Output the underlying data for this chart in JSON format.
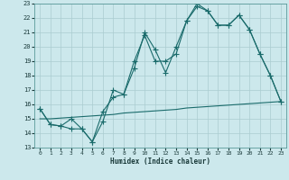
{
  "xlabel": "Humidex (Indice chaleur)",
  "background_color": "#cce8ec",
  "grid_color": "#aaccd0",
  "line_color": "#1a6b6b",
  "xlim": [
    -0.5,
    23.5
  ],
  "ylim": [
    13,
    23
  ],
  "yticks": [
    13,
    14,
    15,
    16,
    17,
    18,
    19,
    20,
    21,
    22,
    23
  ],
  "xticks": [
    0,
    1,
    2,
    3,
    4,
    5,
    6,
    7,
    8,
    9,
    10,
    11,
    12,
    13,
    14,
    15,
    16,
    17,
    18,
    19,
    20,
    21,
    22,
    23
  ],
  "line1_x": [
    0,
    1,
    2,
    3,
    4,
    5,
    6,
    7,
    8,
    9,
    10,
    11,
    12,
    13,
    14,
    15,
    16,
    17,
    18,
    19,
    20,
    21,
    22,
    23
  ],
  "line1_y": [
    15.7,
    14.6,
    14.5,
    15.0,
    14.3,
    13.4,
    15.5,
    16.5,
    16.7,
    19.0,
    20.8,
    19.0,
    19.0,
    19.5,
    21.8,
    22.8,
    22.5,
    21.5,
    21.5,
    22.2,
    21.2,
    19.5,
    18.0,
    16.2
  ],
  "line2_x": [
    0,
    1,
    2,
    3,
    4,
    5,
    6,
    7,
    8,
    9,
    10,
    11,
    12,
    13,
    14,
    15,
    16,
    17,
    18,
    19,
    20,
    21,
    22,
    23
  ],
  "line2_y": [
    15.7,
    14.6,
    14.5,
    14.3,
    14.3,
    13.4,
    14.8,
    17.0,
    16.7,
    18.5,
    21.0,
    19.8,
    18.2,
    20.0,
    21.8,
    23.0,
    22.5,
    21.5,
    21.5,
    22.2,
    21.2,
    19.5,
    18.0,
    16.2
  ],
  "line3_x": [
    0,
    1,
    2,
    3,
    4,
    5,
    6,
    7,
    8,
    9,
    10,
    11,
    12,
    13,
    14,
    15,
    16,
    17,
    18,
    19,
    20,
    21,
    22,
    23
  ],
  "line3_y": [
    15.0,
    15.0,
    15.05,
    15.1,
    15.15,
    15.2,
    15.25,
    15.3,
    15.4,
    15.45,
    15.5,
    15.55,
    15.6,
    15.65,
    15.75,
    15.8,
    15.85,
    15.9,
    15.95,
    16.0,
    16.05,
    16.1,
    16.15,
    16.2
  ]
}
